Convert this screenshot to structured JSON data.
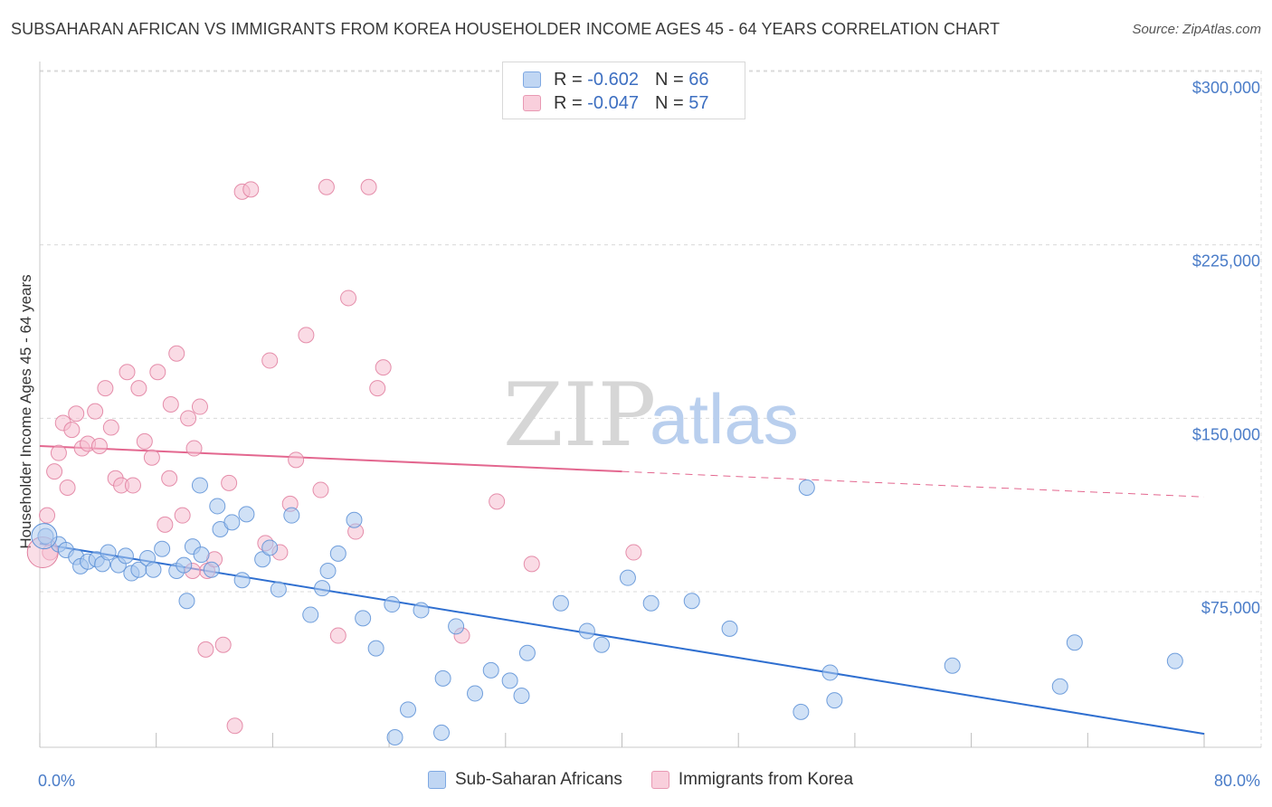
{
  "header": {
    "title": "SUBSAHARAN AFRICAN VS IMMIGRANTS FROM KOREA HOUSEHOLDER INCOME AGES 45 - 64 YEARS CORRELATION CHART",
    "source": "Source: ZipAtlas.com"
  },
  "watermark": {
    "zip": "ZIP",
    "atlas": "atlas"
  },
  "legend": {
    "rows": [
      {
        "r_label": "R = ",
        "r_value": "-0.602",
        "n_label": "N = ",
        "n_value": "66"
      },
      {
        "r_label": "R = ",
        "r_value": "-0.047",
        "n_label": "N = ",
        "n_value": "57"
      }
    ]
  },
  "bottom_legend": {
    "items": [
      "Sub-Saharan Africans",
      "Immigrants from Korea"
    ]
  },
  "colors": {
    "blue": "#5b8fd6",
    "blue_fill": "#aac8ee",
    "blue_line": "#2f6fd0",
    "pink": "#e07d9d",
    "pink_fill": "#f5bdd0",
    "pink_line": "#e3678f",
    "tick_text": "#4a7cc8",
    "grid": "#d9d9d9"
  },
  "chart_data": {
    "type": "scatter",
    "title": "SUBSAHARAN AFRICAN VS IMMIGRANTS FROM KOREA HOUSEHOLDER INCOME AGES 45 - 64 YEARS CORRELATION CHART",
    "xlabel": "",
    "ylabel": "Householder Income Ages 45 - 64 years",
    "xlim": [
      0,
      80
    ],
    "ylim": [
      5000,
      310000
    ],
    "x_tick_labels": [
      "0.0%",
      "80.0%"
    ],
    "y_ticks": [
      75000,
      150000,
      225000,
      300000
    ],
    "y_tick_labels": [
      "$75,000",
      "$150,000",
      "$225,000",
      "$300,000"
    ],
    "grid": "horizontal dashed",
    "legend_position": "top-center",
    "series": [
      {
        "name": "Sub-Saharan Africans",
        "r": -0.602,
        "n": 66,
        "trend": {
          "x": [
            0,
            80
          ],
          "y": [
            95800,
            13500
          ],
          "style": "solid"
        },
        "points": [
          [
            0.4,
            99000
          ],
          [
            1.3,
            95500
          ],
          [
            1.8,
            93000
          ],
          [
            2.5,
            90000
          ],
          [
            2.8,
            86000
          ],
          [
            3.3,
            88000
          ],
          [
            3.9,
            89000
          ],
          [
            4.3,
            87000
          ],
          [
            4.7,
            92000
          ],
          [
            5.4,
            86500
          ],
          [
            5.9,
            90500
          ],
          [
            6.3,
            83000
          ],
          [
            6.8,
            84500
          ],
          [
            7.4,
            89500
          ],
          [
            7.8,
            84500
          ],
          [
            8.4,
            93500
          ],
          [
            9.4,
            84000
          ],
          [
            9.9,
            86500
          ],
          [
            10.5,
            94500
          ],
          [
            11.1,
            91000
          ],
          [
            11.8,
            84500
          ],
          [
            12.4,
            102000
          ],
          [
            13.2,
            105000
          ],
          [
            14.2,
            108500
          ],
          [
            15.3,
            89000
          ],
          [
            16.4,
            76000
          ],
          [
            17.3,
            108000
          ],
          [
            18.6,
            65000
          ],
          [
            19.4,
            76500
          ],
          [
            19.8,
            84000
          ],
          [
            20.5,
            91500
          ],
          [
            21.6,
            106000
          ],
          [
            22.2,
            63500
          ],
          [
            23.1,
            50500
          ],
          [
            24.2,
            69500
          ],
          [
            26.2,
            67000
          ],
          [
            27.7,
            37500
          ],
          [
            28.6,
            60000
          ],
          [
            29.9,
            31000
          ],
          [
            32.3,
            36500
          ],
          [
            33.5,
            48500
          ],
          [
            35.8,
            70000
          ],
          [
            37.6,
            58000
          ],
          [
            38.6,
            52000
          ],
          [
            40.4,
            81000
          ],
          [
            42.0,
            70000
          ],
          [
            44.8,
            71000
          ],
          [
            47.4,
            59000
          ],
          [
            52.3,
            23000
          ],
          [
            52.7,
            120000
          ],
          [
            54.3,
            40000
          ],
          [
            54.6,
            28000
          ],
          [
            62.7,
            43000
          ],
          [
            70.1,
            34000
          ],
          [
            71.1,
            53000
          ],
          [
            78.0,
            45000
          ],
          [
            33.1,
            30000
          ],
          [
            31.0,
            41000
          ],
          [
            27.6,
            14000
          ],
          [
            25.3,
            24000
          ],
          [
            24.4,
            12000
          ],
          [
            12.2,
            112000
          ],
          [
            11.0,
            121000
          ],
          [
            15.8,
            94000
          ],
          [
            13.9,
            80000
          ],
          [
            10.1,
            71000
          ]
        ]
      },
      {
        "name": "Immigrants from Korea",
        "r": -0.047,
        "n": 57,
        "trend": {
          "x": [
            0,
            40
          ],
          "y": [
            138000,
            127000
          ],
          "x_dashed_to": 80,
          "y_dashed_end": 116000,
          "style": "solid then dashed"
        },
        "points": [
          [
            0.5,
            108000
          ],
          [
            0.7,
            92000
          ],
          [
            1.0,
            127000
          ],
          [
            1.3,
            135000
          ],
          [
            1.6,
            148000
          ],
          [
            1.9,
            120000
          ],
          [
            2.2,
            145000
          ],
          [
            2.5,
            152000
          ],
          [
            2.9,
            137000
          ],
          [
            3.3,
            139000
          ],
          [
            3.8,
            153000
          ],
          [
            4.1,
            138000
          ],
          [
            4.5,
            163000
          ],
          [
            4.9,
            146000
          ],
          [
            5.2,
            124000
          ],
          [
            5.6,
            121000
          ],
          [
            6.0,
            170000
          ],
          [
            6.4,
            121000
          ],
          [
            6.8,
            163000
          ],
          [
            7.2,
            140000
          ],
          [
            7.7,
            133000
          ],
          [
            8.1,
            170000
          ],
          [
            8.6,
            104000
          ],
          [
            8.9,
            124000
          ],
          [
            9.4,
            178000
          ],
          [
            9.8,
            108000
          ],
          [
            10.2,
            150000
          ],
          [
            10.6,
            137000
          ],
          [
            11.0,
            155000
          ],
          [
            11.5,
            84000
          ],
          [
            12.0,
            89000
          ],
          [
            12.6,
            52000
          ],
          [
            13.4,
            17000
          ],
          [
            13.9,
            248000
          ],
          [
            14.5,
            249000
          ],
          [
            15.5,
            96000
          ],
          [
            15.8,
            175000
          ],
          [
            16.5,
            92000
          ],
          [
            17.2,
            113000
          ],
          [
            17.6,
            132000
          ],
          [
            18.3,
            186000
          ],
          [
            19.3,
            119000
          ],
          [
            19.7,
            250000
          ],
          [
            20.5,
            56000
          ],
          [
            21.2,
            202000
          ],
          [
            21.7,
            101000
          ],
          [
            22.6,
            250000
          ],
          [
            23.2,
            163000
          ],
          [
            23.6,
            172000
          ],
          [
            29.0,
            56000
          ],
          [
            31.4,
            114000
          ],
          [
            33.8,
            87000
          ],
          [
            40.8,
            92000
          ],
          [
            13.0,
            122000
          ],
          [
            11.4,
            50000
          ],
          [
            10.5,
            84000
          ],
          [
            9.0,
            156000
          ]
        ]
      }
    ]
  }
}
